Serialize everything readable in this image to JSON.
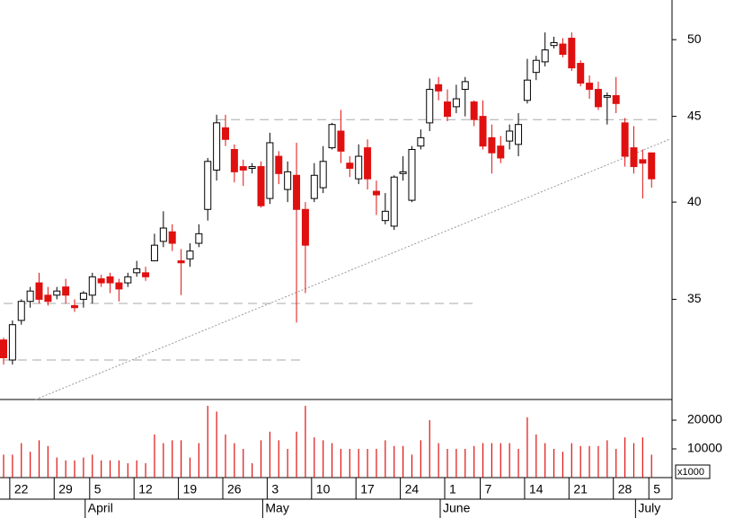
{
  "chart_data": {
    "type": "candlestick",
    "log_scale": true,
    "categories": [
      null,
      "22",
      null,
      null,
      null,
      null,
      "29",
      null,
      null,
      null,
      "5",
      null,
      null,
      null,
      null,
      "12",
      null,
      null,
      null,
      null,
      "19",
      null,
      null,
      null,
      null,
      "26",
      null,
      null,
      null,
      null,
      "3",
      null,
      null,
      null,
      null,
      "10",
      null,
      null,
      null,
      null,
      "17",
      null,
      null,
      null,
      null,
      "24",
      null,
      null,
      null,
      null,
      "1",
      null,
      null,
      null,
      "7",
      null,
      null,
      null,
      null,
      "14",
      null,
      null,
      null,
      null,
      "21",
      null,
      null,
      null,
      null,
      "28",
      null,
      null,
      null,
      "5"
    ],
    "months": [
      null,
      null,
      null,
      null,
      null,
      null,
      null,
      null,
      null,
      null,
      "April",
      null,
      null,
      null,
      null,
      null,
      null,
      null,
      null,
      null,
      null,
      null,
      null,
      null,
      null,
      null,
      null,
      null,
      null,
      null,
      "May",
      null,
      null,
      null,
      null,
      null,
      null,
      null,
      null,
      null,
      null,
      null,
      null,
      null,
      null,
      null,
      null,
      null,
      null,
      null,
      "June",
      null,
      null,
      null,
      null,
      null,
      null,
      null,
      null,
      null,
      null,
      null,
      null,
      null,
      null,
      null,
      null,
      null,
      null,
      null,
      null,
      null,
      "July",
      null
    ],
    "open": [
      33.1,
      32.2,
      34.0,
      34.9,
      35.8,
      35.2,
      35.2,
      35.6,
      34.7,
      35.0,
      35.2,
      36.0,
      36.1,
      35.8,
      35.8,
      36.3,
      36.3,
      36.9,
      37.9,
      38.4,
      36.9,
      37.0,
      37.8,
      39.6,
      41.8,
      44.3,
      43.0,
      42.0,
      41.9,
      42.0,
      40.2,
      42.6,
      40.7,
      41.5,
      39.6,
      40.2,
      40.8,
      43.1,
      44.1,
      42.2,
      41.3,
      43.1,
      40.6,
      39.0,
      38.7,
      41.6,
      40.1,
      43.2,
      44.6,
      47.0,
      45.9,
      45.6,
      46.7,
      45.9,
      45.0,
      43.7,
      43.2,
      43.5,
      43.3,
      46.0,
      47.8,
      48.5,
      49.6,
      49.7,
      50.1,
      48.4,
      47.1,
      46.7,
      46.2,
      46.3,
      44.6,
      43.1,
      42.4,
      42.8
    ],
    "high": [
      33.2,
      34.0,
      35.0,
      35.6,
      36.3,
      35.6,
      35.6,
      36.0,
      35.0,
      35.4,
      36.3,
      36.2,
      36.3,
      36.0,
      36.3,
      36.9,
      36.6,
      38.3,
      39.5,
      38.8,
      37.5,
      37.8,
      38.8,
      42.5,
      45.1,
      45.1,
      43.3,
      42.4,
      42.2,
      42.3,
      44.0,
      42.9,
      42.3,
      43.4,
      40.0,
      42.2,
      43.2,
      44.6,
      45.4,
      42.6,
      43.3,
      43.6,
      41.2,
      40.5,
      41.5,
      42.6,
      43.2,
      44.2,
      47.4,
      47.5,
      46.7,
      47.0,
      47.5,
      46.0,
      46.0,
      44.5,
      43.8,
      44.5,
      45.2,
      48.7,
      48.9,
      50.5,
      50.2,
      50.1,
      50.5,
      48.6,
      47.6,
      47.2,
      46.5,
      47.5,
      44.9,
      44.4,
      43.0,
      42.8
    ],
    "low": [
      32.0,
      32.0,
      33.8,
      34.6,
      34.8,
      34.7,
      35.0,
      34.8,
      34.4,
      34.6,
      34.8,
      35.6,
      35.3,
      34.9,
      35.6,
      36.1,
      35.9,
      36.9,
      37.6,
      37.4,
      35.2,
      36.6,
      37.6,
      39.0,
      41.2,
      43.2,
      41.1,
      40.9,
      41.6,
      39.7,
      39.9,
      41.0,
      40.0,
      33.9,
      35.3,
      40.0,
      40.5,
      43.0,
      42.2,
      41.4,
      41.0,
      40.7,
      39.3,
      38.8,
      38.5,
      41.2,
      40.0,
      43.0,
      44.1,
      46.0,
      44.7,
      45.2,
      45.0,
      44.4,
      43.0,
      41.6,
      42.2,
      43.0,
      42.6,
      45.8,
      47.3,
      48.2,
      49.4,
      48.8,
      47.9,
      46.9,
      46.1,
      45.4,
      44.5,
      45.2,
      42.0,
      41.6,
      40.2,
      40.8
    ],
    "close": [
      32.3,
      33.8,
      34.9,
      35.4,
      35.0,
      34.9,
      35.4,
      35.2,
      34.6,
      35.3,
      36.1,
      35.8,
      35.8,
      35.5,
      36.1,
      36.5,
      36.1,
      37.7,
      38.6,
      37.8,
      36.8,
      37.4,
      38.3,
      42.3,
      44.6,
      43.6,
      41.7,
      41.8,
      42.0,
      39.8,
      43.4,
      41.6,
      41.7,
      39.6,
      37.7,
      41.5,
      42.3,
      44.5,
      42.9,
      41.9,
      42.6,
      41.3,
      40.4,
      39.5,
      41.4,
      41.7,
      43.0,
      43.7,
      46.7,
      46.6,
      45.0,
      46.1,
      47.2,
      44.8,
      43.2,
      42.8,
      42.5,
      44.1,
      44.5,
      47.3,
      48.6,
      49.3,
      49.8,
      49.0,
      48.1,
      47.1,
      46.7,
      45.6,
      46.3,
      45.8,
      42.6,
      42.0,
      42.2,
      41.3
    ],
    "up_color": "#ffffff",
    "down_color": "#e01010",
    "ylim": [
      30.5,
      52.8
    ],
    "yticks": [
      35,
      40,
      45,
      50
    ],
    "reference_lines": [
      {
        "value": 44.8,
        "from": 24,
        "to": 74
      },
      {
        "value": 34.8,
        "from": 0,
        "to": 53
      },
      {
        "value": 32.2,
        "from": 0,
        "to": 34
      }
    ],
    "trend_line": {
      "from": [
        3.6,
        30.5
      ],
      "to": [
        75,
        43.6
      ]
    },
    "volume": {
      "values": [
        8000,
        8000,
        12000,
        9000,
        13000,
        11000,
        7000,
        6000,
        6000,
        7000,
        8000,
        6000,
        6000,
        6000,
        5000,
        6000,
        5000,
        15000,
        12000,
        13000,
        13000,
        7000,
        12000,
        25000,
        23000,
        15000,
        12000,
        10000,
        5000,
        13000,
        16000,
        13000,
        10000,
        16000,
        25000,
        14000,
        13000,
        12000,
        10000,
        10000,
        10000,
        10000,
        10000,
        13000,
        11000,
        11000,
        8000,
        13000,
        20000,
        12000,
        10000,
        10000,
        10000,
        11000,
        12000,
        12000,
        12000,
        12000,
        10000,
        21000,
        15000,
        12000,
        10000,
        9000,
        12000,
        11000,
        11000,
        11000,
        13000,
        10000,
        14000,
        12000,
        14000,
        8000
      ],
      "color": "#e01010",
      "ylim": [
        0,
        27200
      ],
      "yticks": [
        10000,
        20000
      ],
      "unit_label": "x1000"
    }
  }
}
